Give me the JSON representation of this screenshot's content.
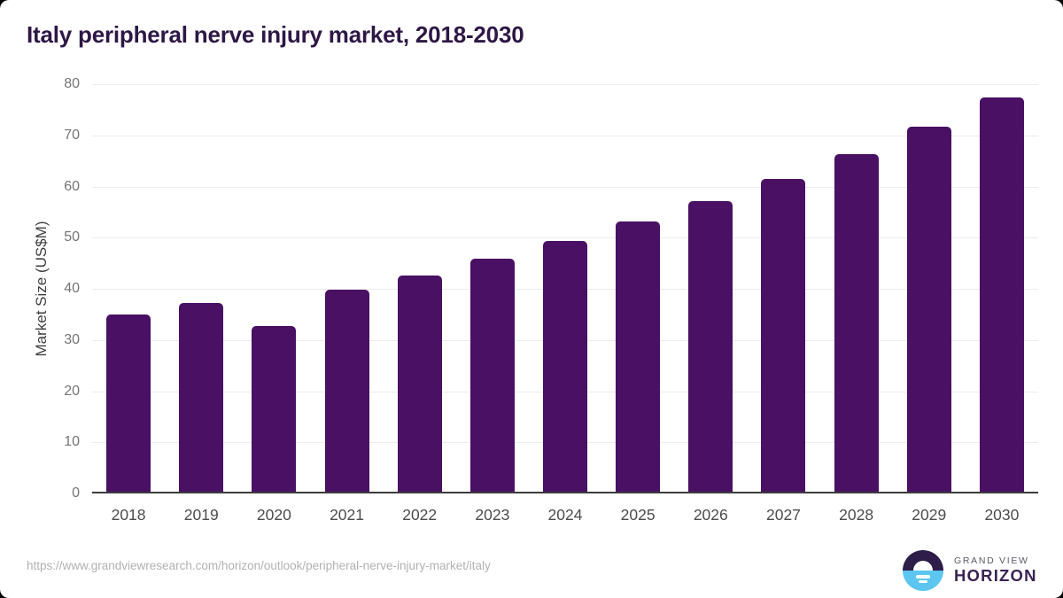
{
  "title": "Italy peripheral nerve injury market, 2018-2030",
  "chart_data": {
    "type": "bar",
    "title": "Italy peripheral nerve injury market, 2018-2030",
    "categories": [
      "2018",
      "2019",
      "2020",
      "2021",
      "2022",
      "2023",
      "2024",
      "2025",
      "2026",
      "2027",
      "2028",
      "2029",
      "2030"
    ],
    "values": [
      34.6,
      36.9,
      32.4,
      39.4,
      42.3,
      45.5,
      49.0,
      52.8,
      56.8,
      61.2,
      66.0,
      71.3,
      77.0
    ],
    "xlabel": "",
    "ylabel": "Market Size (US$M)",
    "ylim": [
      0,
      80
    ],
    "yticks": [
      0,
      10,
      20,
      30,
      40,
      50,
      60,
      70,
      80
    ],
    "grid": "horizontal",
    "legend": false,
    "bar_color": "#491063"
  },
  "footer": {
    "source_url": "https://www.grandviewresearch.com/horizon/outlook/peripheral-nerve-injury-market/italy",
    "logo": {
      "top_text": "GRAND VIEW",
      "bottom_text": "HORIZON"
    }
  },
  "colors": {
    "accent_purple": "#491063",
    "title_purple": "#2e1745",
    "logo_dark": "#2e1c49",
    "logo_blue": "#5cc6f0",
    "gridline": "#ececec",
    "axis_line": "#3c3c3c"
  }
}
